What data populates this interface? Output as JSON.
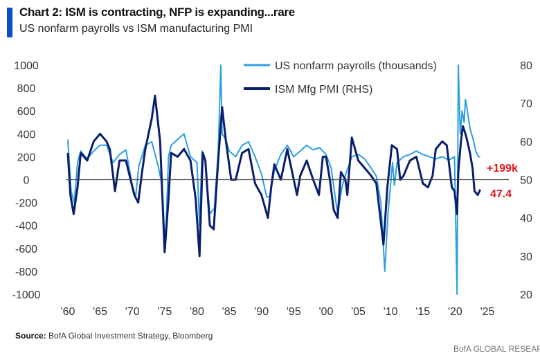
{
  "header": {
    "title": "Chart 2: ISM is contracting, NFP is expanding...rare",
    "subtitle": "US nonfarm payrolls vs ISM manufacturing PMI"
  },
  "footer": {
    "source_label": "Source:",
    "source_text": "BofA Global Investment Strategy, Bloomberg",
    "brand": "BofA GLOBAL RESEARCH"
  },
  "colors": {
    "nfp": "#2a9fe0",
    "pmi": "#0a1e6e",
    "annotation": "#e0141e"
  },
  "chart_data": {
    "type": "line",
    "title": "Chart 2: ISM is contracting, NFP is expanding...rare",
    "subtitle": "US nonfarm payrolls vs ISM manufacturing PMI",
    "legend": "top-center",
    "grid": false,
    "x_ticks": [
      "'60",
      "'65",
      "'70",
      "'75",
      "'80",
      "'85",
      "'90",
      "'95",
      "'00",
      "'05",
      "'10",
      "'15",
      "'20",
      "'25"
    ],
    "x_range": [
      1960,
      2025
    ],
    "y_left": {
      "range": [
        -1000,
        1000
      ],
      "ticks": [
        "1000",
        "800",
        "600",
        "400",
        "200",
        "0",
        "-200",
        "-400",
        "-600",
        "-800",
        "-1000"
      ]
    },
    "y_right": {
      "range": [
        20,
        80
      ],
      "ticks": [
        "80",
        "70",
        "60",
        "50",
        "40",
        "30",
        "20"
      ]
    },
    "series": [
      {
        "name": "US nonfarm payrolls (thousands)",
        "axis": "left",
        "x": [
          1960,
          1960.5,
          1961,
          1961.5,
          1962,
          1963,
          1964,
          1965,
          1966,
          1967,
          1968,
          1969,
          1970,
          1970.5,
          1971,
          1972,
          1973,
          1974,
          1974.6,
          1975.1,
          1975.6,
          1976,
          1977,
          1978,
          1979,
          1980,
          1980.4,
          1980.8,
          1981.3,
          1982,
          1982.7,
          1983.3,
          1983.7,
          1983.9,
          1984.5,
          1985,
          1986,
          1987,
          1988,
          1989,
          1990,
          1990.8,
          1991.3,
          1992,
          1993,
          1994,
          1995,
          1996,
          1997,
          1998,
          1999,
          2000,
          2000.8,
          2001.8,
          2002.5,
          2003,
          2004,
          2005,
          2006,
          2007,
          2007.8,
          2008.5,
          2009.1,
          2009.6,
          2010.3,
          2010.6,
          2011,
          2012,
          2013,
          2014,
          2015,
          2016,
          2017,
          2018,
          2019,
          2019.9,
          2020.3,
          2020.5,
          2020.8,
          2021.1,
          2021.4,
          2021.6,
          2021.9,
          2022.3,
          2022.8,
          2023.2,
          2023.6,
          2023.9
        ],
        "values": [
          350,
          -100,
          -200,
          150,
          250,
          180,
          250,
          300,
          300,
          150,
          220,
          260,
          -50,
          -150,
          120,
          300,
          330,
          120,
          -50,
          -600,
          200,
          300,
          350,
          400,
          200,
          150,
          -400,
          250,
          150,
          -300,
          -250,
          250,
          1000,
          400,
          350,
          250,
          200,
          300,
          330,
          200,
          50,
          -150,
          -150,
          80,
          220,
          300,
          200,
          250,
          300,
          260,
          280,
          220,
          100,
          -300,
          -60,
          40,
          200,
          220,
          180,
          100,
          30,
          -200,
          -800,
          -300,
          150,
          -50,
          150,
          200,
          220,
          250,
          220,
          200,
          180,
          200,
          170,
          200,
          -1000,
          1000,
          400,
          600,
          500,
          700,
          600,
          450,
          350,
          250,
          200,
          199
        ]
      },
      {
        "name": "ISM Mfg PMI (RHS)",
        "axis": "right",
        "x": [
          1960,
          1960.4,
          1960.9,
          1961.5,
          1962,
          1963,
          1964,
          1965,
          1966,
          1966.5,
          1967.3,
          1968,
          1969,
          1970.3,
          1970.9,
          1971.5,
          1972,
          1973,
          1973.5,
          1974.3,
          1975.0,
          1975.6,
          1976,
          1977,
          1978,
          1979,
          1979.8,
          1980.4,
          1980.9,
          1981.3,
          1982,
          1982.6,
          1983.3,
          1983.9,
          1984.5,
          1985.3,
          1986,
          1987,
          1988,
          1989,
          1990,
          1991.0,
          1991.5,
          1992,
          1993,
          1994,
          1995,
          1995.5,
          1996,
          1997,
          1998,
          1998.9,
          1999.5,
          2000,
          2000.6,
          2001.2,
          2001.8,
          2002.3,
          2003,
          2003.3,
          2004,
          2005,
          2006,
          2007,
          2007.8,
          2008.9,
          2009.5,
          2010.2,
          2011,
          2011.5,
          2012,
          2013,
          2014,
          2015,
          2015.8,
          2016.5,
          2017,
          2018,
          2018.7,
          2019.5,
          2019.9,
          2020.3,
          2020.5,
          2020.9,
          2021.2,
          2021.6,
          2021.9,
          2022.3,
          2022.7,
          2023,
          2023.5,
          2023.9
        ],
        "values": [
          57,
          46,
          41,
          48,
          57,
          55,
          60,
          62,
          60,
          58,
          47,
          55,
          55,
          46,
          44,
          52,
          58,
          66,
          72,
          60,
          31,
          45,
          57,
          56,
          58,
          55,
          45,
          30,
          57,
          55,
          38,
          37,
          55,
          69,
          60,
          50,
          50,
          57,
          58,
          49,
          46,
          40,
          48,
          54,
          50,
          58,
          50,
          46,
          51,
          55,
          50,
          46,
          56,
          56,
          50,
          42,
          40,
          52,
          50,
          46,
          61,
          55,
          53,
          51,
          49,
          33,
          48,
          59,
          58,
          50,
          51,
          55,
          56,
          49,
          48,
          51,
          58,
          60,
          59,
          48,
          47,
          41,
          52,
          60,
          64,
          62,
          60,
          57,
          53,
          47,
          46,
          47.4
        ]
      }
    ],
    "annotations": [
      {
        "text": "+199k",
        "series": "US nonfarm payrolls (thousands)"
      },
      {
        "text": "47.4",
        "series": "ISM Mfg PMI (RHS)"
      }
    ]
  }
}
